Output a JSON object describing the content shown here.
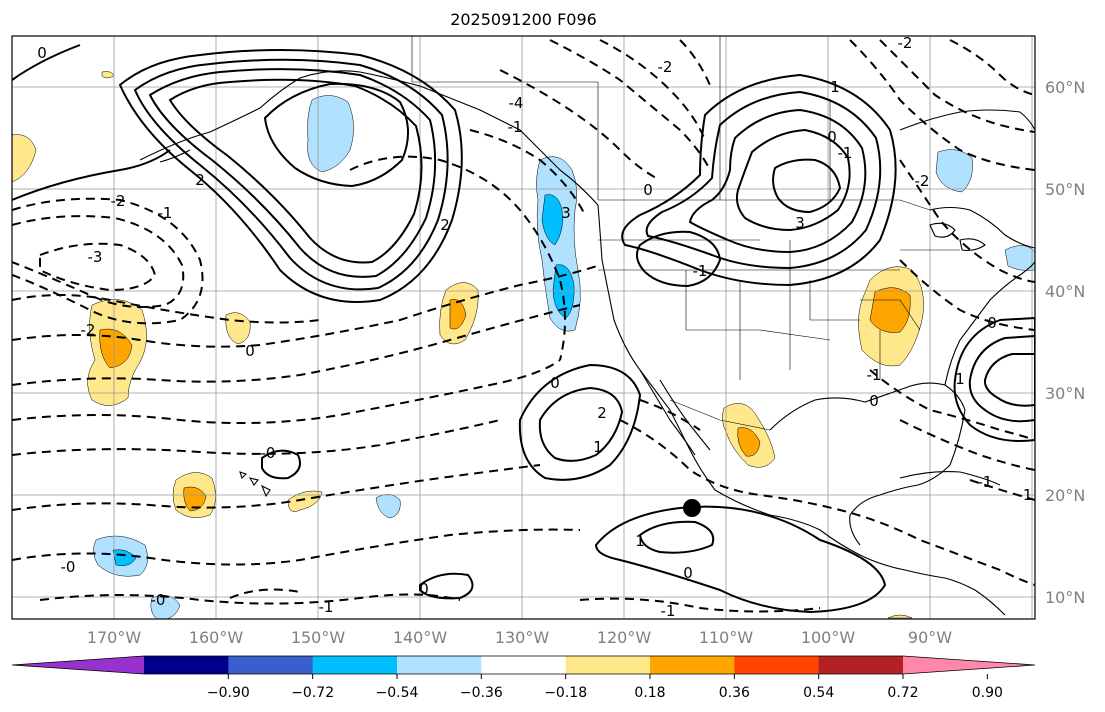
{
  "title": "2025091200 F096",
  "lat_labels": [
    "60°N",
    "50°N",
    "40°N",
    "30°N",
    "20°N",
    "10°N"
  ],
  "lon_labels": [
    "170°W",
    "160°W",
    "150°W",
    "140°W",
    "130°W",
    "120°W",
    "110°W",
    "100°W",
    "90°W"
  ],
  "contour_labels": [
    "0",
    "2",
    "-2",
    "-1",
    "-3",
    "-2",
    "0",
    "2",
    "-4",
    "3",
    "-2",
    "3",
    "0",
    "1",
    "2",
    "1",
    "0",
    "-1",
    "-1",
    "-1",
    "1",
    "0",
    "0",
    "-1",
    "-1",
    "-2",
    "1",
    "-1",
    "0",
    "-0",
    "-0",
    "-0",
    "0",
    "-1",
    "0",
    "-1",
    "-2"
  ],
  "colorbar": {
    "ticks": [
      "−0.90",
      "−0.72",
      "−0.54",
      "−0.36",
      "−0.18",
      "0.18",
      "0.36",
      "0.54",
      "0.72",
      "0.90"
    ],
    "colors": [
      "#9932CC",
      "#00008B",
      "#3A5FCD",
      "#00BFFF",
      "#B0E2FF",
      "#FFFFFF",
      "#FFE88C",
      "#FFA500",
      "#FF4500",
      "#B22222",
      "#FF88AA"
    ]
  },
  "marker": "storm-center"
}
